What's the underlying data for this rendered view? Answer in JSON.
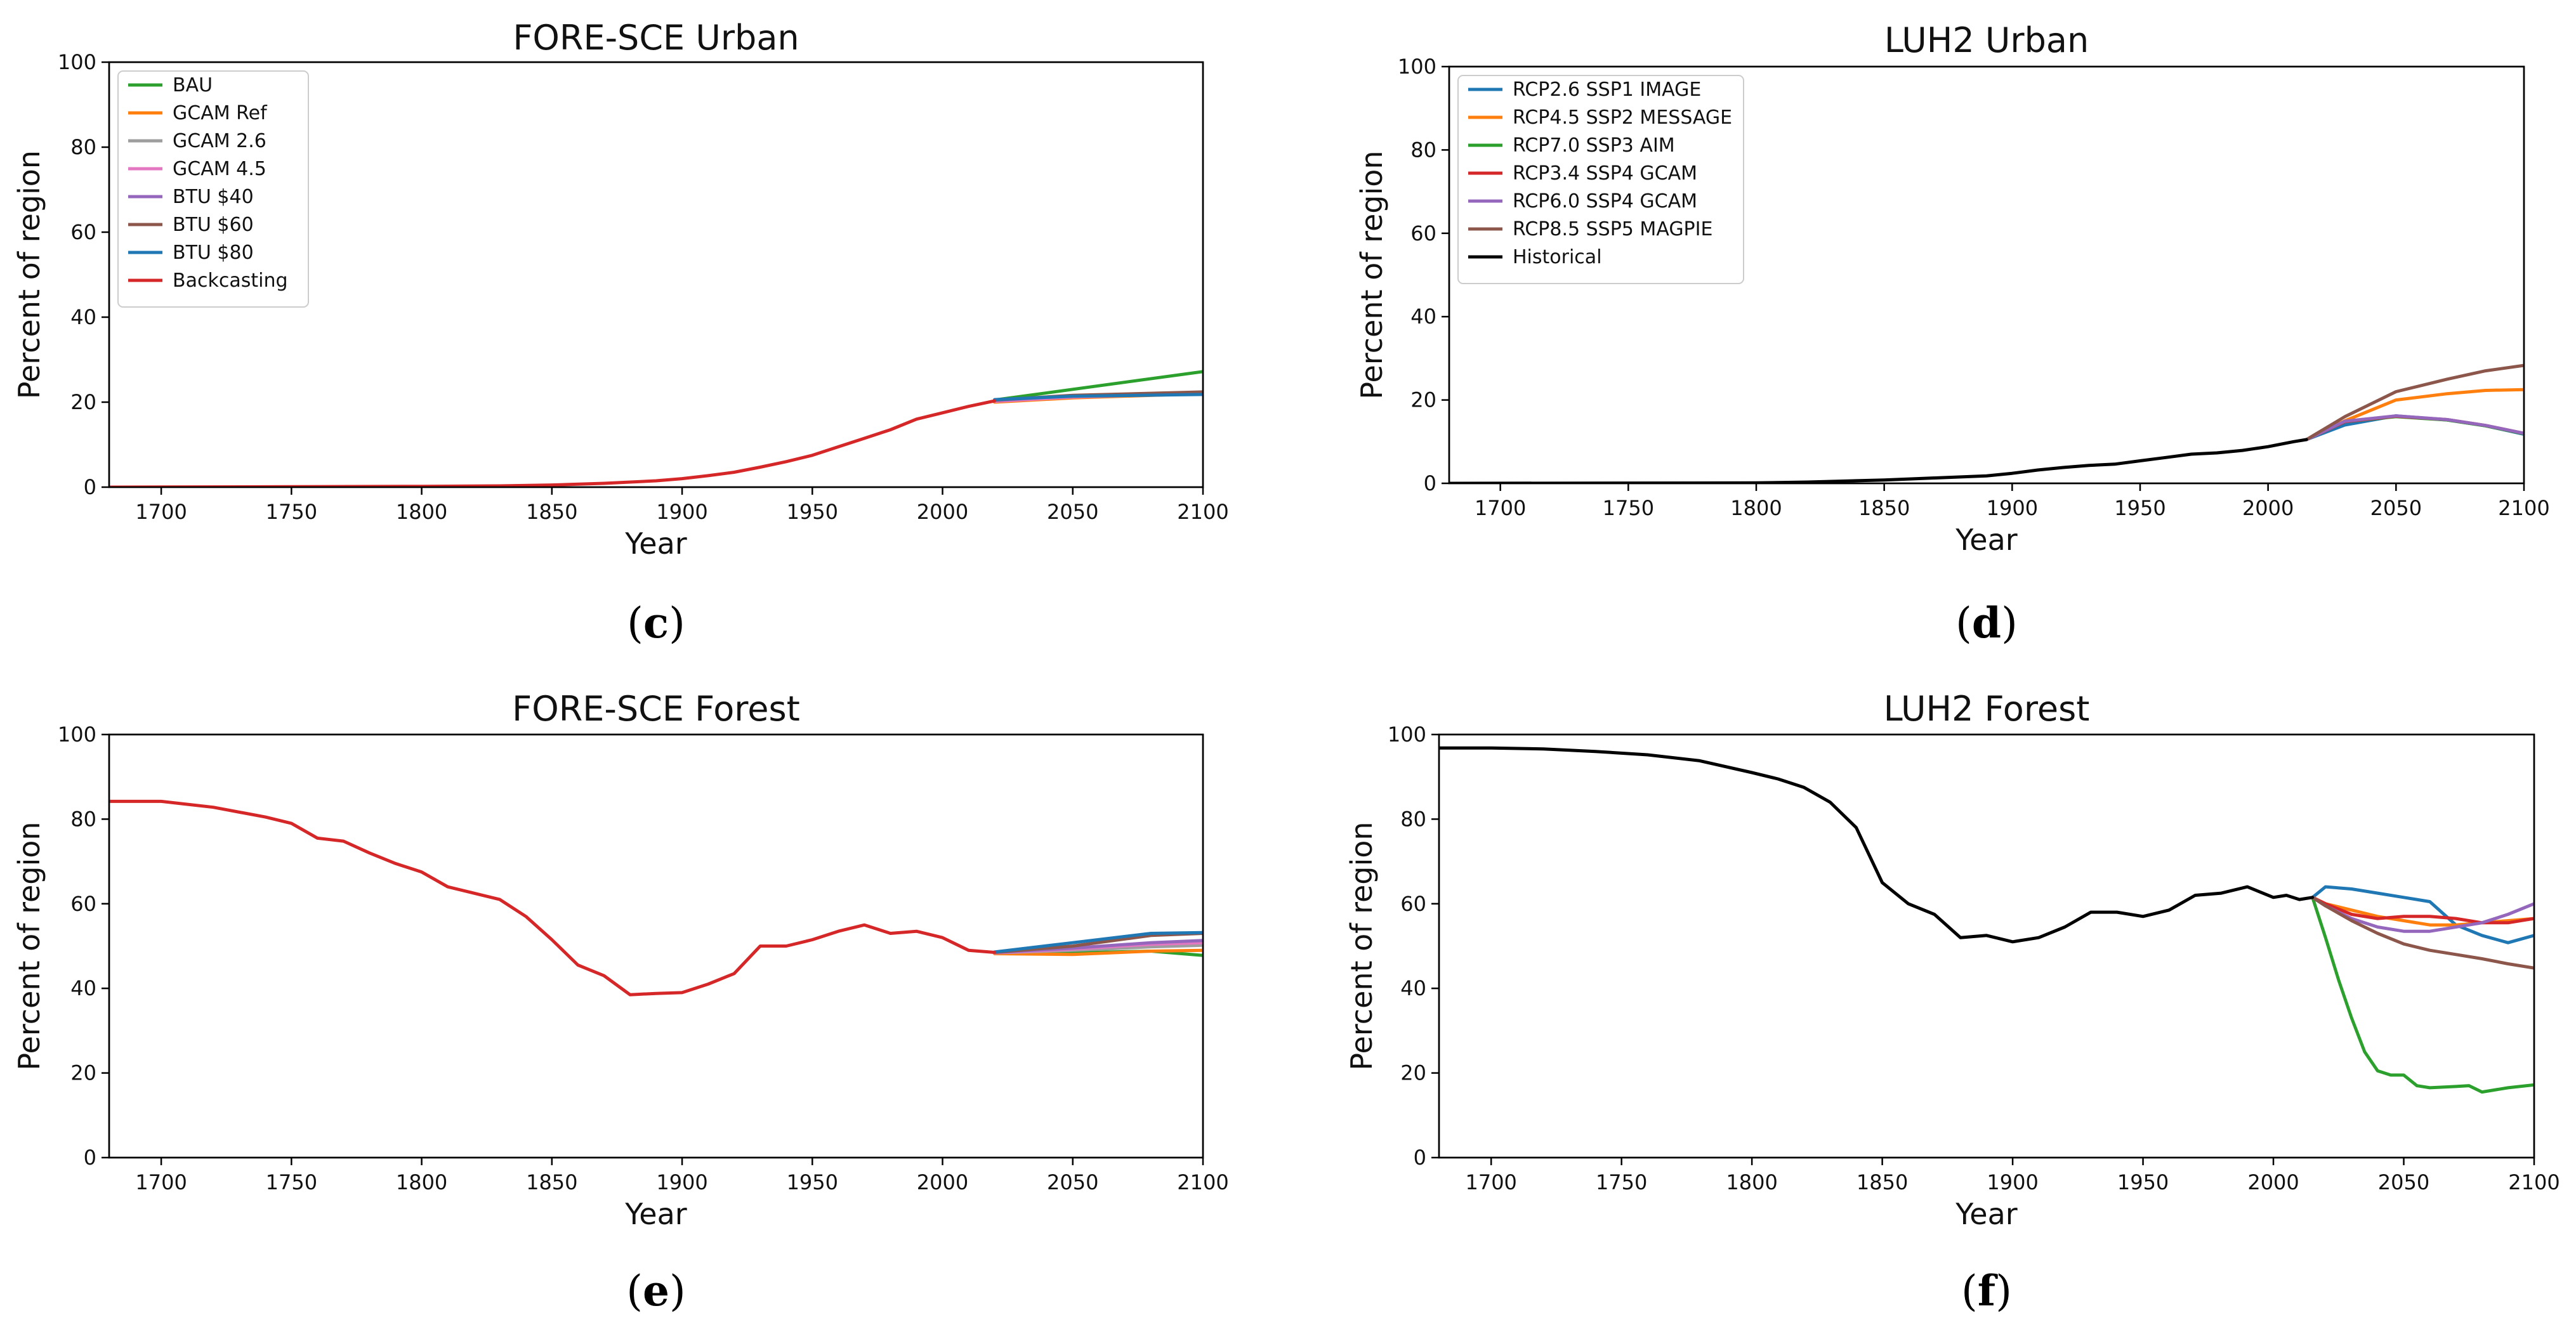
{
  "chart_data": [
    {
      "id": "c",
      "type": "line",
      "title": "FORE-SCE Urban",
      "xlabel": "Year",
      "ylabel": "Percent of region",
      "xlim": [
        1680,
        2100
      ],
      "ylim": [
        0,
        100
      ],
      "xticks": [
        1700,
        1750,
        1800,
        1850,
        1900,
        1950,
        2000,
        2050,
        2100
      ],
      "yticks": [
        0,
        20,
        40,
        60,
        80,
        100
      ],
      "legend": "top-left",
      "caption": {
        "open": "(",
        "letter": "c",
        "close": ")"
      },
      "series": [
        {
          "name": "BAU",
          "color": "#2ca02c",
          "x": [
            2020,
            2100
          ],
          "y": [
            20.5,
            27.2
          ]
        },
        {
          "name": "GCAM Ref",
          "color": "#ff7f0e",
          "x": [
            2020,
            2050,
            2100
          ],
          "y": [
            20.0,
            21.0,
            22.0
          ]
        },
        {
          "name": "GCAM 2.6",
          "color": "#9e9e9e",
          "x": [
            2020,
            2050,
            2100
          ],
          "y": [
            20.3,
            21.3,
            22.2
          ]
        },
        {
          "name": "GCAM 4.5",
          "color": "#e377c2",
          "x": [
            2020,
            2050,
            2100
          ],
          "y": [
            20.2,
            21.2,
            22.1
          ]
        },
        {
          "name": "BTU $40",
          "color": "#9467bd",
          "x": [
            2020,
            2050,
            2100
          ],
          "y": [
            20.4,
            21.5,
            22.3
          ]
        },
        {
          "name": "BTU $60",
          "color": "#8c564b",
          "x": [
            2020,
            2050,
            2100
          ],
          "y": [
            20.5,
            21.6,
            22.4
          ]
        },
        {
          "name": "BTU $80",
          "color": "#1f77b4",
          "x": [
            2020,
            2050,
            2100
          ],
          "y": [
            20.6,
            21.4,
            21.8
          ]
        },
        {
          "name": "Backcasting",
          "color": "#d62728",
          "x": [
            1680,
            1750,
            1800,
            1830,
            1850,
            1870,
            1890,
            1900,
            1910,
            1920,
            1930,
            1940,
            1950,
            1960,
            1970,
            1980,
            1990,
            2000,
            2010,
            2020
          ],
          "y": [
            0,
            0.1,
            0.2,
            0.3,
            0.5,
            0.9,
            1.5,
            2.0,
            2.7,
            3.5,
            4.7,
            6.0,
            7.5,
            9.5,
            11.5,
            13.5,
            16.0,
            17.5,
            19.0,
            20.3
          ]
        }
      ]
    },
    {
      "id": "d",
      "type": "line",
      "title": "LUH2 Urban",
      "xlabel": "Year",
      "ylabel": "Percent of region",
      "xlim": [
        1680,
        2100
      ],
      "ylim": [
        0,
        100
      ],
      "xticks": [
        1700,
        1750,
        1800,
        1850,
        1900,
        1950,
        2000,
        2050,
        2100
      ],
      "yticks": [
        0,
        20,
        40,
        60,
        80,
        100
      ],
      "legend": "top-left",
      "caption": {
        "open": "(",
        "letter": "d",
        "close": ")"
      },
      "series": [
        {
          "name": "RCP2.6 SSP1 IMAGE",
          "color": "#1f77b4",
          "x": [
            2015,
            2030,
            2050,
            2070,
            2085,
            2100
          ],
          "y": [
            10.5,
            14.0,
            16.2,
            15.2,
            13.8,
            11.8
          ]
        },
        {
          "name": "RCP4.5 SSP2 MESSAGE",
          "color": "#ff7f0e",
          "x": [
            2015,
            2030,
            2050,
            2070,
            2085,
            2100
          ],
          "y": [
            10.5,
            15.0,
            20.0,
            21.5,
            22.3,
            22.5
          ]
        },
        {
          "name": "RCP7.0 SSP3 AIM",
          "color": "#2ca02c",
          "x": [
            2015,
            2030,
            2050,
            2070,
            2085,
            2100
          ],
          "y": [
            10.5,
            14.8,
            16.0,
            15.2,
            13.8,
            11.9
          ]
        },
        {
          "name": "RCP3.4 SSP4 GCAM",
          "color": "#d62728",
          "x": [
            2015,
            2030,
            2050,
            2070,
            2085,
            2100
          ],
          "y": [
            10.5,
            14.8,
            16.1,
            15.3,
            13.9,
            12.0
          ]
        },
        {
          "name": "RCP6.0 SSP4 GCAM",
          "color": "#9467bd",
          "x": [
            2015,
            2030,
            2050,
            2070,
            2085,
            2100
          ],
          "y": [
            10.5,
            14.9,
            16.2,
            15.3,
            13.9,
            12.0
          ]
        },
        {
          "name": "RCP8.5 SSP5 MAGPIE",
          "color": "#8c564b",
          "x": [
            2015,
            2030,
            2050,
            2070,
            2085,
            2100
          ],
          "y": [
            10.5,
            16.0,
            22.0,
            25.0,
            27.0,
            28.3
          ]
        },
        {
          "name": "Historical",
          "color": "#000000",
          "x": [
            1680,
            1800,
            1820,
            1850,
            1870,
            1890,
            1900,
            1910,
            1920,
            1930,
            1940,
            1950,
            1960,
            1970,
            1980,
            1990,
            2000,
            2010,
            2015
          ],
          "y": [
            0,
            0.1,
            0.3,
            0.8,
            1.3,
            1.8,
            2.4,
            3.2,
            3.8,
            4.3,
            4.6,
            5.4,
            6.2,
            7.0,
            7.3,
            7.9,
            8.8,
            10.0,
            10.5
          ]
        }
      ]
    },
    {
      "id": "e",
      "type": "line",
      "title": "FORE-SCE Forest",
      "xlabel": "Year",
      "ylabel": "Percent of region",
      "xlim": [
        1680,
        2100
      ],
      "ylim": [
        0,
        100
      ],
      "xticks": [
        1700,
        1750,
        1800,
        1850,
        1900,
        1950,
        2000,
        2050,
        2100
      ],
      "yticks": [
        0,
        20,
        40,
        60,
        80,
        100
      ],
      "legend": "none",
      "caption": {
        "open": "(",
        "letter": "e",
        "close": ")"
      },
      "series": [
        {
          "name": "BAU",
          "color": "#2ca02c",
          "x": [
            2020,
            2050,
            2080,
            2100
          ],
          "y": [
            48.3,
            48.4,
            48.8,
            47.8
          ]
        },
        {
          "name": "GCAM Ref",
          "color": "#ff7f0e",
          "x": [
            2020,
            2050,
            2080,
            2100
          ],
          "y": [
            48.2,
            48.0,
            48.8,
            49.0
          ]
        },
        {
          "name": "GCAM 2.6",
          "color": "#9e9e9e",
          "x": [
            2020,
            2050,
            2080,
            2100
          ],
          "y": [
            48.4,
            49.0,
            49.8,
            50.2
          ]
        },
        {
          "name": "GCAM 4.5",
          "color": "#e377c2",
          "x": [
            2020,
            2050,
            2080,
            2100
          ],
          "y": [
            48.4,
            49.3,
            50.4,
            50.8
          ]
        },
        {
          "name": "BTU $40",
          "color": "#9467bd",
          "x": [
            2020,
            2050,
            2080,
            2100
          ],
          "y": [
            48.5,
            49.5,
            50.8,
            51.3
          ]
        },
        {
          "name": "BTU $60",
          "color": "#8c564b",
          "x": [
            2020,
            2050,
            2080,
            2100
          ],
          "y": [
            48.5,
            50.0,
            52.5,
            53.0
          ]
        },
        {
          "name": "BTU $80",
          "color": "#1f77b4",
          "x": [
            2020,
            2050,
            2080,
            2100
          ],
          "y": [
            48.6,
            50.8,
            53.0,
            53.2
          ]
        },
        {
          "name": "Backcasting",
          "color": "#d62728",
          "x": [
            1680,
            1700,
            1720,
            1740,
            1750,
            1760,
            1770,
            1780,
            1790,
            1800,
            1810,
            1820,
            1830,
            1840,
            1850,
            1860,
            1870,
            1880,
            1890,
            1900,
            1910,
            1920,
            1930,
            1940,
            1950,
            1960,
            1970,
            1980,
            1990,
            2000,
            2010,
            2020
          ],
          "y": [
            84.2,
            84.2,
            82.8,
            80.5,
            79.0,
            75.5,
            74.8,
            72.0,
            69.5,
            67.5,
            64.0,
            62.5,
            61.0,
            57.0,
            51.5,
            45.5,
            43.0,
            38.5,
            38.8,
            39.0,
            41.0,
            43.5,
            50.0,
            50.0,
            51.5,
            53.5,
            55.0,
            53.0,
            53.5,
            52.0,
            49.0,
            48.5
          ]
        }
      ]
    },
    {
      "id": "f",
      "type": "line",
      "title": "LUH2 Forest",
      "xlabel": "Year",
      "ylabel": "Percent of region",
      "xlim": [
        1680,
        2100
      ],
      "ylim": [
        0,
        100
      ],
      "xticks": [
        1700,
        1750,
        1800,
        1850,
        1900,
        1950,
        2000,
        2050,
        2100
      ],
      "yticks": [
        0,
        20,
        40,
        60,
        80,
        100
      ],
      "legend": "none",
      "caption": {
        "open": "(",
        "letter": "f",
        "close": ")"
      },
      "series": [
        {
          "name": "RCP2.6 SSP1 IMAGE",
          "color": "#1f77b4",
          "x": [
            2015,
            2020,
            2030,
            2040,
            2050,
            2060,
            2070,
            2080,
            2090,
            2100
          ],
          "y": [
            61.5,
            64.0,
            63.5,
            62.5,
            61.5,
            60.5,
            55.0,
            52.5,
            50.8,
            52.5
          ]
        },
        {
          "name": "RCP4.5 SSP2 MESSAGE",
          "color": "#ff7f0e",
          "x": [
            2015,
            2020,
            2030,
            2040,
            2050,
            2060,
            2070,
            2080,
            2090,
            2100
          ],
          "y": [
            61.5,
            60.0,
            58.5,
            57.0,
            56.0,
            55.0,
            55.0,
            55.5,
            56.0,
            56.5
          ]
        },
        {
          "name": "RCP7.0 SSP3 AIM",
          "color": "#2ca02c",
          "x": [
            2015,
            2020,
            2025,
            2030,
            2035,
            2040,
            2045,
            2050,
            2055,
            2060,
            2070,
            2075,
            2080,
            2090,
            2100
          ],
          "y": [
            61.5,
            52.0,
            42.0,
            33.0,
            25.0,
            20.5,
            19.5,
            19.5,
            17.0,
            16.5,
            16.8,
            17.0,
            15.5,
            16.5,
            17.2
          ]
        },
        {
          "name": "RCP3.4 SSP4 GCAM",
          "color": "#d62728",
          "x": [
            2015,
            2020,
            2030,
            2040,
            2050,
            2060,
            2070,
            2080,
            2090,
            2100
          ],
          "y": [
            61.5,
            60.0,
            57.5,
            56.5,
            57.0,
            57.0,
            56.5,
            55.5,
            55.5,
            56.5
          ]
        },
        {
          "name": "RCP6.0 SSP4 GCAM",
          "color": "#9467bd",
          "x": [
            2015,
            2020,
            2030,
            2040,
            2050,
            2060,
            2070,
            2080,
            2090,
            2100
          ],
          "y": [
            61.5,
            59.5,
            56.5,
            54.5,
            53.5,
            53.5,
            54.5,
            55.5,
            57.5,
            60.0
          ]
        },
        {
          "name": "RCP8.5 SSP5 MAGPIE",
          "color": "#8c564b",
          "x": [
            2015,
            2020,
            2030,
            2040,
            2050,
            2060,
            2070,
            2080,
            2090,
            2100
          ],
          "y": [
            61.5,
            59.5,
            56.0,
            53.0,
            50.5,
            49.0,
            48.0,
            47.0,
            45.8,
            44.8
          ]
        },
        {
          "name": "Historical",
          "color": "#000000",
          "x": [
            1680,
            1700,
            1720,
            1740,
            1760,
            1780,
            1800,
            1810,
            1820,
            1830,
            1840,
            1850,
            1860,
            1870,
            1880,
            1890,
            1900,
            1910,
            1920,
            1930,
            1940,
            1950,
            1960,
            1970,
            1980,
            1990,
            2000,
            2005,
            2010,
            2015
          ],
          "y": [
            96.8,
            96.8,
            96.6,
            96.0,
            95.2,
            93.8,
            91.0,
            89.5,
            87.5,
            84.0,
            78.0,
            65.0,
            60.0,
            57.5,
            52.0,
            52.5,
            51.0,
            52.0,
            54.5,
            58.0,
            58.0,
            57.0,
            58.5,
            62.0,
            62.5,
            64.0,
            61.5,
            62.0,
            61.0,
            61.5
          ]
        }
      ]
    }
  ]
}
